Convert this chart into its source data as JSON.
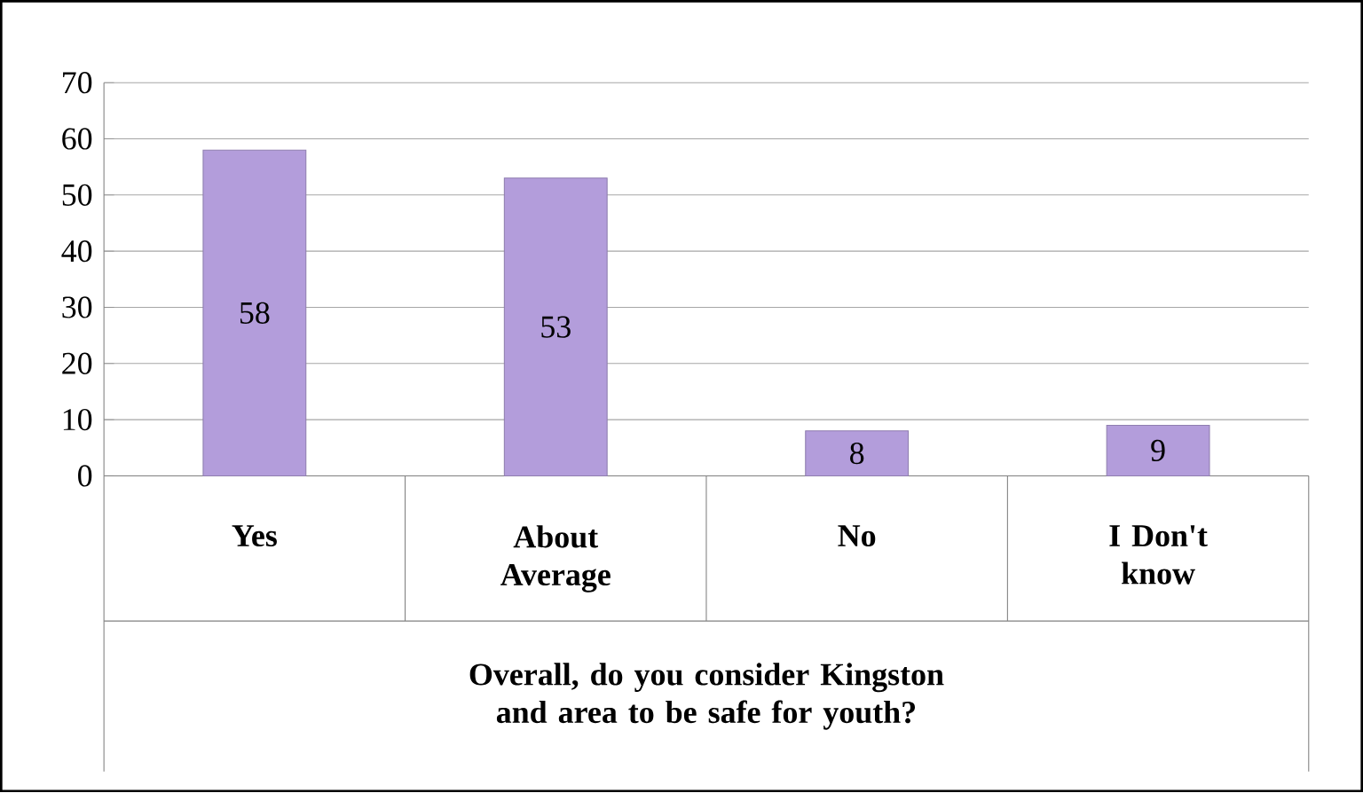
{
  "chart_data": {
    "type": "bar",
    "xlabel": "Overall, do you consider Kingston and area to be safe for youth?",
    "categories": [
      "Yes",
      "About Average",
      "No",
      "I Don't know"
    ],
    "values": [
      58,
      53,
      8,
      9
    ],
    "color": "#b39ddb",
    "ylim": [
      0,
      70
    ],
    "yticks": [
      0,
      10,
      20,
      30,
      40,
      50,
      60,
      70
    ],
    "grid": "y",
    "data_labels": true
  }
}
